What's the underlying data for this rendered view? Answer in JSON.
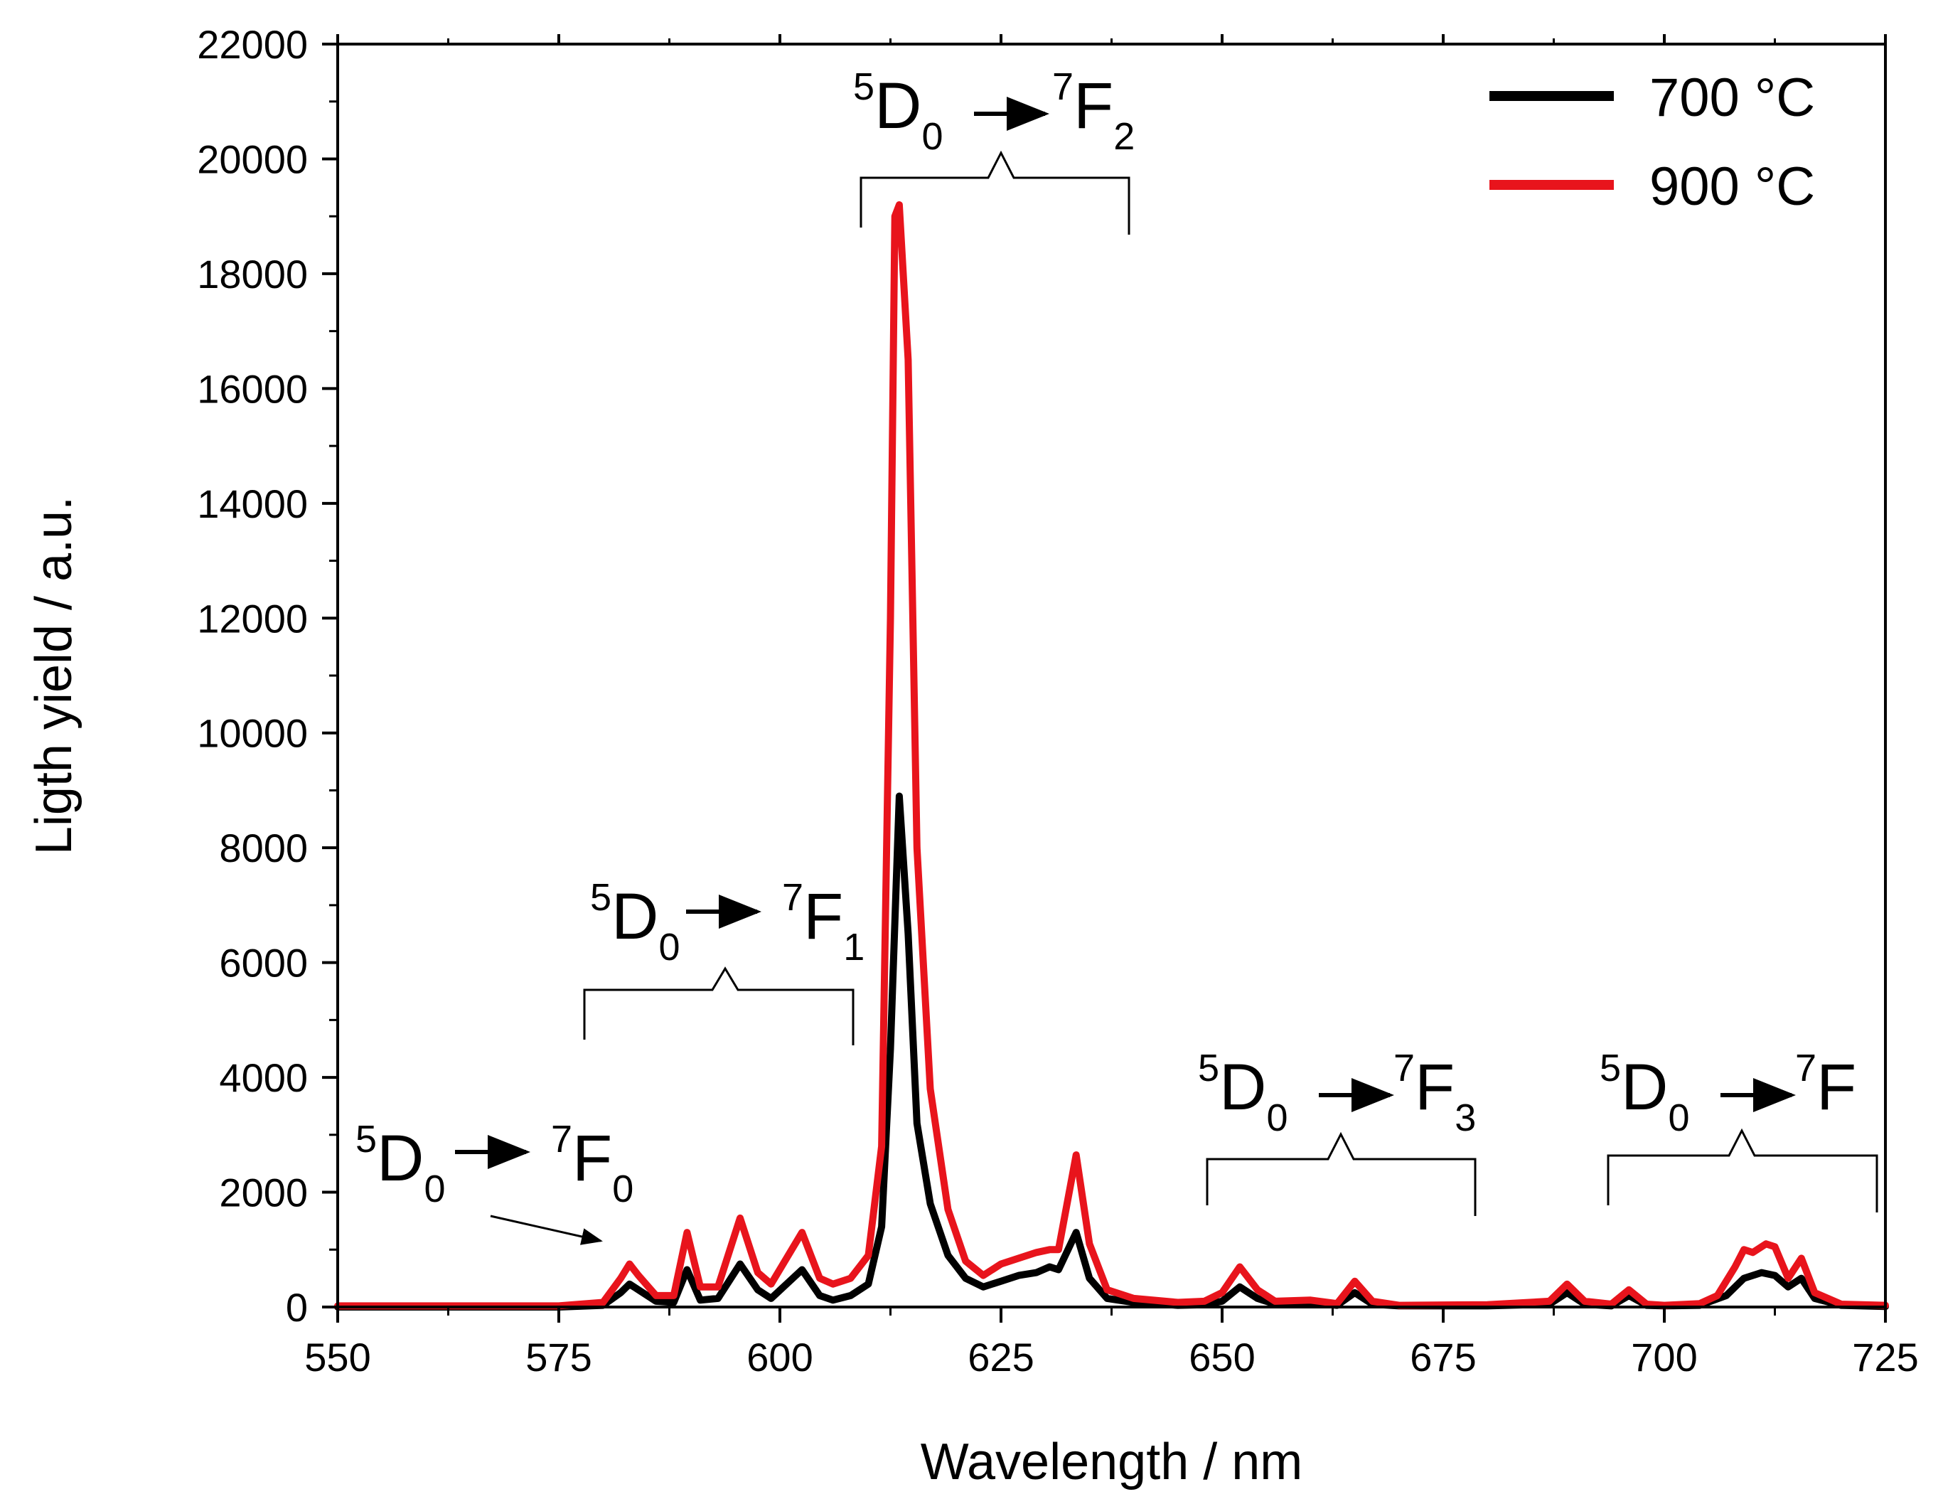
{
  "chart_data": {
    "type": "line",
    "xlabel": "Wavelength / nm",
    "ylabel": "Ligth yield / a.u.",
    "xlim": [
      550,
      725
    ],
    "ylim": [
      0,
      22000
    ],
    "xticks": [
      550,
      575,
      600,
      625,
      650,
      675,
      700,
      725
    ],
    "yticks": [
      0,
      2000,
      4000,
      6000,
      8000,
      10000,
      12000,
      14000,
      16000,
      18000,
      20000,
      22000
    ],
    "legend_position": "top-right",
    "series": [
      {
        "name": "700 °C",
        "color": "#000000",
        "points": [
          [
            550,
            0
          ],
          [
            575,
            0
          ],
          [
            580,
            30
          ],
          [
            582,
            250
          ],
          [
            583,
            400
          ],
          [
            584,
            300
          ],
          [
            586,
            100
          ],
          [
            588,
            80
          ],
          [
            589.5,
            650
          ],
          [
            591,
            120
          ],
          [
            593,
            150
          ],
          [
            595.5,
            750
          ],
          [
            597.5,
            300
          ],
          [
            599,
            150
          ],
          [
            602.5,
            650
          ],
          [
            604.5,
            200
          ],
          [
            606,
            120
          ],
          [
            608,
            200
          ],
          [
            610,
            400
          ],
          [
            611.5,
            1400
          ],
          [
            612.5,
            4500
          ],
          [
            613.5,
            8900
          ],
          [
            614.5,
            6500
          ],
          [
            615.5,
            3200
          ],
          [
            617,
            1800
          ],
          [
            619,
            900
          ],
          [
            621,
            500
          ],
          [
            623,
            350
          ],
          [
            625,
            450
          ],
          [
            627,
            550
          ],
          [
            629,
            600
          ],
          [
            630.5,
            700
          ],
          [
            631.5,
            650
          ],
          [
            633.5,
            1300
          ],
          [
            635,
            500
          ],
          [
            637,
            150
          ],
          [
            640,
            80
          ],
          [
            645,
            30
          ],
          [
            648,
            40
          ],
          [
            650,
            100
          ],
          [
            652,
            350
          ],
          [
            654,
            150
          ],
          [
            656,
            50
          ],
          [
            660,
            80
          ],
          [
            663,
            30
          ],
          [
            665,
            250
          ],
          [
            667,
            50
          ],
          [
            670,
            20
          ],
          [
            680,
            20
          ],
          [
            687,
            50
          ],
          [
            689,
            250
          ],
          [
            691,
            50
          ],
          [
            694,
            20
          ],
          [
            696,
            200
          ],
          [
            698,
            30
          ],
          [
            700,
            20
          ],
          [
            704,
            30
          ],
          [
            707,
            200
          ],
          [
            709,
            500
          ],
          [
            711,
            600
          ],
          [
            712.5,
            550
          ],
          [
            714,
            350
          ],
          [
            715.5,
            500
          ],
          [
            717,
            150
          ],
          [
            720,
            30
          ],
          [
            725,
            10
          ]
        ]
      },
      {
        "name": "900 °C",
        "color": "#e8141c",
        "points": [
          [
            550,
            20
          ],
          [
            560,
            20
          ],
          [
            575,
            20
          ],
          [
            580,
            80
          ],
          [
            582,
            500
          ],
          [
            583,
            750
          ],
          [
            584,
            550
          ],
          [
            586,
            200
          ],
          [
            588,
            200
          ],
          [
            589.5,
            1300
          ],
          [
            591,
            350
          ],
          [
            593,
            350
          ],
          [
            595.5,
            1550
          ],
          [
            597.5,
            600
          ],
          [
            599,
            400
          ],
          [
            602.5,
            1300
          ],
          [
            604.5,
            500
          ],
          [
            606,
            400
          ],
          [
            608,
            500
          ],
          [
            610,
            900
          ],
          [
            611.5,
            2800
          ],
          [
            612.5,
            12000
          ],
          [
            613,
            19000
          ],
          [
            613.5,
            19200
          ],
          [
            614.5,
            16500
          ],
          [
            615.5,
            8000
          ],
          [
            617,
            3800
          ],
          [
            619,
            1700
          ],
          [
            621,
            800
          ],
          [
            623,
            550
          ],
          [
            625,
            750
          ],
          [
            627,
            850
          ],
          [
            629,
            950
          ],
          [
            630.5,
            1000
          ],
          [
            631.5,
            1000
          ],
          [
            633.5,
            2650
          ],
          [
            635,
            1100
          ],
          [
            637,
            300
          ],
          [
            640,
            150
          ],
          [
            645,
            80
          ],
          [
            648,
            100
          ],
          [
            650,
            250
          ],
          [
            652,
            700
          ],
          [
            654,
            300
          ],
          [
            656,
            100
          ],
          [
            660,
            120
          ],
          [
            663,
            60
          ],
          [
            665,
            450
          ],
          [
            667,
            100
          ],
          [
            670,
            30
          ],
          [
            680,
            40
          ],
          [
            687,
            100
          ],
          [
            689,
            400
          ],
          [
            691,
            100
          ],
          [
            694,
            50
          ],
          [
            696,
            300
          ],
          [
            698,
            50
          ],
          [
            700,
            30
          ],
          [
            704,
            60
          ],
          [
            706,
            200
          ],
          [
            708,
            700
          ],
          [
            709,
            1000
          ],
          [
            710,
            950
          ],
          [
            711.5,
            1100
          ],
          [
            712.5,
            1050
          ],
          [
            714,
            500
          ],
          [
            715.5,
            850
          ],
          [
            717,
            250
          ],
          [
            720,
            50
          ],
          [
            725,
            30
          ]
        ]
      }
    ],
    "annotations": [
      {
        "main": "D",
        "left_sup": "5",
        "sub1": "0",
        "target": "F",
        "target_sup": "7",
        "target_sub": "0"
      },
      {
        "main": "D",
        "left_sup": "5",
        "sub1": "0",
        "target": "F",
        "target_sup": "7",
        "target_sub": "1"
      },
      {
        "main": "D",
        "left_sup": "5",
        "sub1": "0",
        "target": "F",
        "target_sup": "7",
        "target_sub": "2"
      },
      {
        "main": "D",
        "left_sup": "5",
        "sub1": "0",
        "target": "F",
        "target_sup": "7",
        "target_sub": "3"
      },
      {
        "main": "D",
        "left_sup": "5",
        "sub1": "0",
        "target": "F",
        "target_sup": "7",
        "target_sub": ""
      }
    ]
  }
}
